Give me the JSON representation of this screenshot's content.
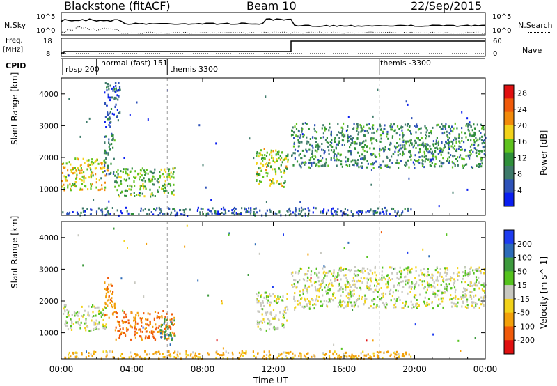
{
  "header": {
    "radar": "Blackstone (fitACF)",
    "beam": "Beam 10",
    "date": "22/Sep/2015"
  },
  "top_panel": {
    "nsky_label": "N.Sky",
    "nsearch_label": "N.Search",
    "nsky_ticks": [
      "10^5",
      "10^0"
    ],
    "nsearch_ticks": [
      "10^5",
      "10^0"
    ],
    "freq_label": "Freq.",
    "freq_unit": "[MHz]",
    "freq_ticks": [
      "18",
      "8"
    ],
    "nave_label": "Nave",
    "nave_ticks": [
      "60",
      "0"
    ],
    "cpid_label": "CPID",
    "cpid_modes": [
      {
        "label": "rbsp 200",
        "start_hour": 0.0
      },
      {
        "label": "normal (fast) 151",
        "start_hour": 2.0
      },
      {
        "label": "themis 3300",
        "start_hour": 6.0
      },
      {
        "label": "themis -3300",
        "start_hour": 18.0
      }
    ]
  },
  "colors": {
    "power_scale": [
      "#0a1ef0",
      "#2e52b8",
      "#3e7a6a",
      "#2f8f3a",
      "#5fc21e",
      "#f2d21a",
      "#f28a0a",
      "#f05a0a",
      "#e01010"
    ],
    "velocity_scale": [
      "#1e3cf0",
      "#2d6bb8",
      "#3d9a3d",
      "#55c21e",
      "#c8c8c0",
      "#f2d21a",
      "#f2a00a",
      "#f05a0a",
      "#e01010"
    ]
  },
  "chart_data": [
    {
      "type": "heatmap",
      "title": "",
      "ylabel": "Slant Range [km]",
      "xlabel": "Time UT",
      "xlim": [
        0,
        24
      ],
      "ylim": [
        180,
        4500
      ],
      "x_ticks": [
        "00:00",
        "04:00",
        "08:00",
        "12:00",
        "16:00",
        "20:00",
        "00:00"
      ],
      "y_ticks": [
        "1000",
        "2000",
        "3000",
        "4000"
      ],
      "colorbar": {
        "label": "Power [dB]",
        "ticks": [
          "4",
          "8",
          "12",
          "16",
          "20",
          "24",
          "28"
        ],
        "range": [
          0,
          30
        ]
      },
      "regions": [
        {
          "t0": 0.0,
          "t1": 2.6,
          "r0": 1000,
          "r1": 2000,
          "power": 18
        },
        {
          "t0": 2.4,
          "t1": 3.0,
          "r0": 1500,
          "r1": 2800,
          "power": 9
        },
        {
          "t0": 3.0,
          "t1": 6.4,
          "r0": 800,
          "r1": 1700,
          "power": 14
        },
        {
          "t0": 2.4,
          "t1": 3.3,
          "r0": 3000,
          "r1": 4400,
          "power": 6
        },
        {
          "t0": 11.0,
          "t1": 12.8,
          "r0": 1100,
          "r1": 2300,
          "power": 16
        },
        {
          "t0": 13.0,
          "t1": 24.0,
          "r0": 1700,
          "r1": 3100,
          "power": 10
        },
        {
          "t0": 0.0,
          "t1": 20.0,
          "r0": 200,
          "r1": 450,
          "power": 6
        }
      ]
    },
    {
      "type": "heatmap",
      "title": "",
      "ylabel": "Slant Range [km]",
      "xlabel": "Time UT",
      "xlim": [
        0,
        24
      ],
      "ylim": [
        180,
        4500
      ],
      "x_ticks": [
        "00:00",
        "04:00",
        "08:00",
        "12:00",
        "16:00",
        "20:00",
        "00:00"
      ],
      "y_ticks": [
        "1000",
        "2000",
        "3000",
        "4000"
      ],
      "colorbar": {
        "label": "Velocity [m s^-1]",
        "ticks": [
          "200",
          "100",
          "50",
          "15",
          "-15",
          "-50",
          "-100",
          "-200"
        ],
        "range": [
          -250,
          250
        ]
      },
      "regions": [
        {
          "t0": 0.0,
          "t1": 2.6,
          "r0": 1100,
          "r1": 1900,
          "velocity": 0
        },
        {
          "t0": 2.4,
          "t1": 3.0,
          "r0": 1500,
          "r1": 2800,
          "velocity": -60
        },
        {
          "t0": 3.0,
          "t1": 6.4,
          "r0": 800,
          "r1": 1700,
          "velocity": -80
        },
        {
          "t0": 5.5,
          "t1": 6.4,
          "r0": 800,
          "r1": 1500,
          "velocity": 60
        },
        {
          "t0": 11.0,
          "t1": 12.8,
          "r0": 1100,
          "r1": 2300,
          "velocity": 0
        },
        {
          "t0": 13.0,
          "t1": 24.0,
          "r0": 1800,
          "r1": 3100,
          "velocity": 0
        },
        {
          "t0": 0.0,
          "t1": 20.0,
          "r0": 200,
          "r1": 450,
          "velocity": -40
        }
      ]
    }
  ]
}
